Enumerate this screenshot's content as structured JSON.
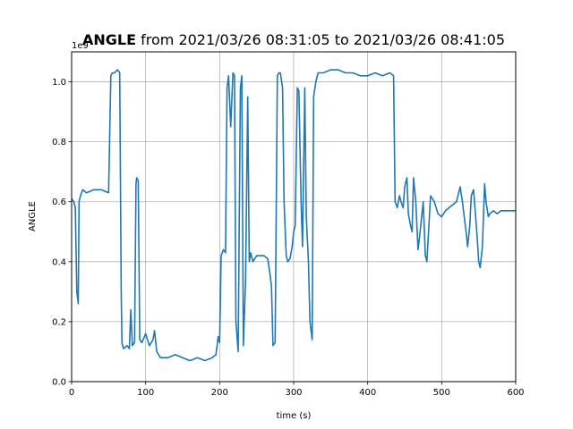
{
  "chart_data": {
    "type": "line",
    "title_bold": "ANGLE",
    "title_rest": " from 2021/03/26 08:31:05 to 2021/03/26 08:41:05",
    "xlabel": "time (s)",
    "ylabel": "ANGLE",
    "y_offset_text": "1e9",
    "xlim": [
      0,
      600
    ],
    "ylim": [
      0.0,
      1.1
    ],
    "grid": true,
    "line_color": "#1f77b4",
    "x_ticks": [
      0,
      100,
      200,
      300,
      400,
      500,
      600
    ],
    "x_tick_labels": [
      "0",
      "100",
      "200",
      "300",
      "400",
      "500",
      "600"
    ],
    "y_ticks": [
      0.0,
      0.2,
      0.4,
      0.6,
      0.8,
      1.0
    ],
    "y_tick_labels": [
      "0.0",
      "0.2",
      "0.4",
      "0.6",
      "0.8",
      "1.0"
    ],
    "series": [
      {
        "x": [
          0,
          3,
          5,
          7,
          9,
          10,
          12,
          15,
          20,
          30,
          40,
          50,
          53,
          55,
          58,
          62,
          65,
          67,
          68,
          70,
          75,
          78,
          80,
          82,
          85,
          87,
          88,
          90,
          92,
          95,
          100,
          105,
          110,
          112,
          115,
          120,
          130,
          140,
          150,
          160,
          170,
          180,
          190,
          195,
          198,
          200,
          202,
          205,
          208,
          210,
          212,
          215,
          218,
          220,
          222,
          225,
          228,
          230,
          232,
          235,
          238,
          240,
          242,
          245,
          250,
          260,
          265,
          268,
          270,
          272,
          275,
          278,
          280,
          282,
          285,
          287,
          290,
          292,
          295,
          298,
          300,
          302,
          305,
          307,
          310,
          312,
          315,
          317,
          320,
          322,
          325,
          327,
          330,
          333,
          340,
          350,
          360,
          370,
          380,
          390,
          400,
          410,
          420,
          430,
          435,
          437,
          440,
          443,
          445,
          448,
          450,
          453,
          455,
          458,
          460,
          462,
          465,
          468,
          470,
          473,
          475,
          478,
          480,
          485,
          490,
          495,
          500,
          505,
          510,
          515,
          520,
          522,
          525,
          528,
          530,
          533,
          535,
          538,
          540,
          543,
          545,
          548,
          550,
          552,
          555,
          558,
          560,
          563,
          565,
          570,
          575,
          580,
          590,
          600
        ],
        "y": [
          0.61,
          0.6,
          0.58,
          0.3,
          0.26,
          0.6,
          0.62,
          0.64,
          0.63,
          0.64,
          0.64,
          0.63,
          1.02,
          1.03,
          1.03,
          1.04,
          1.03,
          0.3,
          0.13,
          0.11,
          0.12,
          0.11,
          0.24,
          0.12,
          0.13,
          0.66,
          0.68,
          0.67,
          0.14,
          0.13,
          0.16,
          0.12,
          0.14,
          0.17,
          0.1,
          0.08,
          0.08,
          0.09,
          0.08,
          0.07,
          0.08,
          0.07,
          0.08,
          0.09,
          0.15,
          0.13,
          0.42,
          0.44,
          0.43,
          0.98,
          1.02,
          0.85,
          1.03,
          1.02,
          0.2,
          0.1,
          0.98,
          1.02,
          0.12,
          0.34,
          0.95,
          0.4,
          0.43,
          0.4,
          0.42,
          0.42,
          0.41,
          0.36,
          0.32,
          0.12,
          0.13,
          1.02,
          1.03,
          1.03,
          0.98,
          0.6,
          0.42,
          0.4,
          0.41,
          0.45,
          0.5,
          0.52,
          0.98,
          0.97,
          0.6,
          0.45,
          0.98,
          0.55,
          0.4,
          0.2,
          0.14,
          0.95,
          1.0,
          1.03,
          1.03,
          1.04,
          1.04,
          1.03,
          1.03,
          1.02,
          1.02,
          1.03,
          1.02,
          1.03,
          1.02,
          0.6,
          0.58,
          0.62,
          0.6,
          0.58,
          0.65,
          0.68,
          0.56,
          0.52,
          0.5,
          0.68,
          0.6,
          0.44,
          0.48,
          0.55,
          0.6,
          0.42,
          0.4,
          0.62,
          0.6,
          0.56,
          0.55,
          0.57,
          0.58,
          0.59,
          0.6,
          0.62,
          0.65,
          0.6,
          0.56,
          0.5,
          0.45,
          0.52,
          0.62,
          0.64,
          0.58,
          0.48,
          0.4,
          0.38,
          0.45,
          0.66,
          0.6,
          0.55,
          0.56,
          0.57,
          0.56,
          0.57,
          0.57,
          0.57
        ]
      }
    ]
  }
}
